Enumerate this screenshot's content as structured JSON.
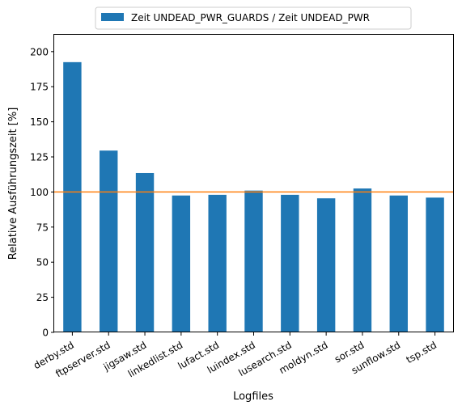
{
  "chart_data": {
    "type": "bar",
    "title": "",
    "xlabel": "Logfiles",
    "ylabel": "Relative Ausführungszeit [%]",
    "ylim": [
      0,
      212
    ],
    "yticks": [
      0,
      25,
      50,
      75,
      100,
      125,
      150,
      175,
      200
    ],
    "categories": [
      "derby.std",
      "ftpserver.std",
      "jigsaw.std",
      "linkedlist.std",
      "lufact.std",
      "luindex.std",
      "lusearch.std",
      "moldyn.std",
      "sor.std",
      "sunflow.std",
      "tsp.std"
    ],
    "series": [
      {
        "name": "Zeit UNDEAD_PWR_GUARDS / Zeit UNDEAD_PWR",
        "color": "#1f77b4",
        "values": [
          192.5,
          129.5,
          113.5,
          97.5,
          98,
          101,
          98,
          95.5,
          102.5,
          97.5,
          96
        ]
      }
    ],
    "reference_line": {
      "y": 100,
      "color": "#ff7f0e"
    },
    "legend_position": "top-center",
    "grid": false
  }
}
